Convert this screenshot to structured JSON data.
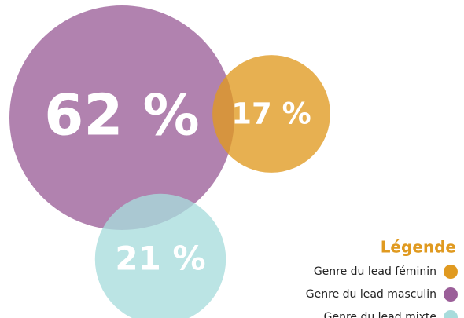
{
  "chart_data": {
    "type": "bubble",
    "legend_title": "Légende",
    "categories": [
      "Genre du lead féminin",
      "Genre du lead masculin",
      "Genre du lead mixte"
    ],
    "values": [
      17,
      62,
      21
    ],
    "value_labels": [
      "17 %",
      "62 %",
      "21 %"
    ],
    "colors": [
      "#e09a20",
      "#9b5f99",
      "#a8dcdc"
    ],
    "legend": "bottom-right"
  }
}
